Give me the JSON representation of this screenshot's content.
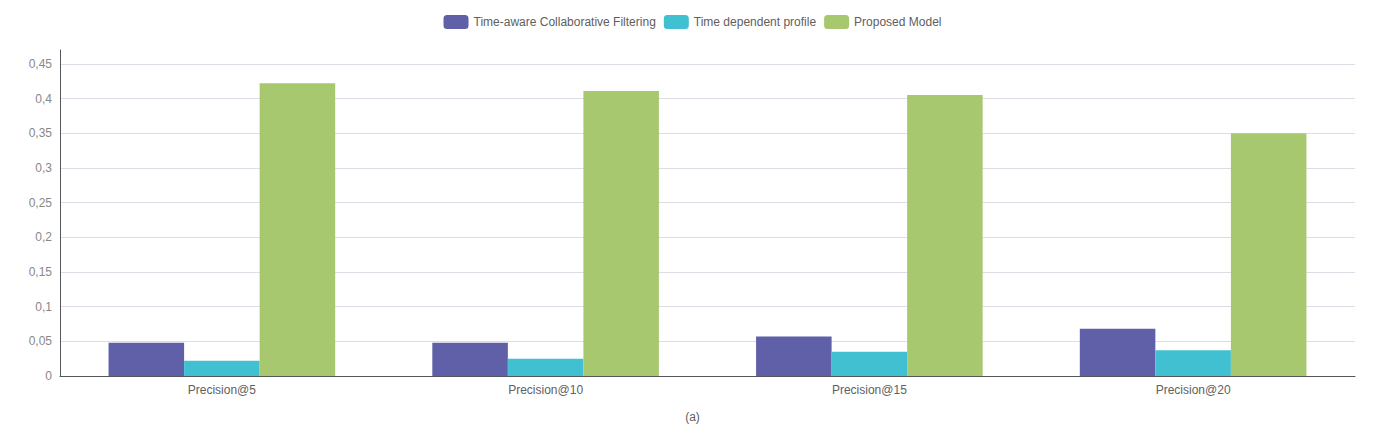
{
  "chart_data": {
    "type": "bar",
    "subtitle": "(a)",
    "categories": [
      "Precision@5",
      "Precision@10",
      "Precision@15",
      "Precision@20"
    ],
    "series": [
      {
        "name": "Time-aware Collaborative Filtering",
        "color": "#6060a8",
        "values": [
          0.048,
          0.048,
          0.057,
          0.068
        ]
      },
      {
        "name": "Time dependent profile",
        "color": "#40c0d0",
        "values": [
          0.022,
          0.025,
          0.035,
          0.037
        ]
      },
      {
        "name": "Proposed Model",
        "color": "#a8c870",
        "values": [
          0.422,
          0.411,
          0.405,
          0.35
        ]
      }
    ],
    "ylim": [
      0,
      0.47
    ],
    "yticks": [
      0,
      {
        "value": 0.05,
        "label": "0,05"
      },
      {
        "value": 0.1,
        "label": "0,1"
      },
      {
        "value": 0.15,
        "label": "0,15"
      },
      {
        "value": 0.2,
        "label": "0,2"
      },
      {
        "value": 0.25,
        "label": "0,25"
      },
      {
        "value": 0.3,
        "label": "0,3"
      },
      {
        "value": 0.35,
        "label": "0,35"
      },
      {
        "value": 0.4,
        "label": "0,4"
      },
      {
        "value": 0.45,
        "label": "0,45"
      }
    ],
    "grid": true,
    "legend": "top"
  }
}
